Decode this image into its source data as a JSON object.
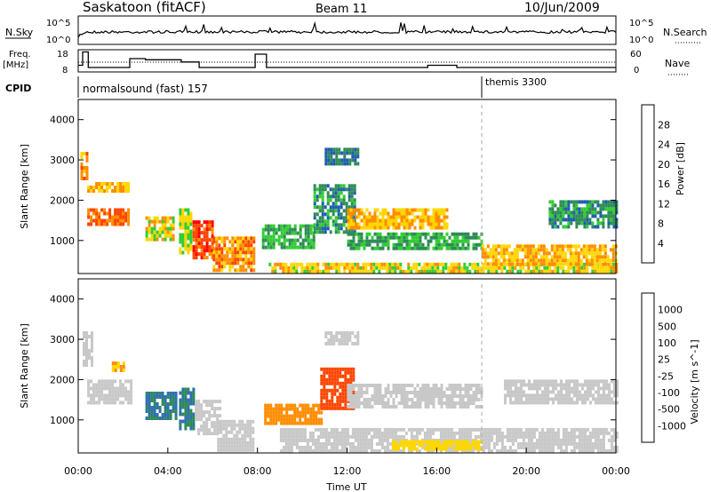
{
  "header": {
    "station": "Saskatoon (fitACF)",
    "beam": "Beam 11",
    "date": "10/Jun/2009"
  },
  "noise_panel": {
    "left_label": "N.Sky",
    "right_label": "N.Search",
    "left_ticks": [
      "10^5",
      "10^0"
    ],
    "right_ticks": [
      "10^5",
      "10^0"
    ]
  },
  "freq_panel": {
    "left_label_line1": "Freq.",
    "left_label_line2": "[MHz]",
    "right_label": "Nave",
    "left_ticks": [
      "18",
      "8"
    ],
    "right_ticks": [
      "60",
      "0"
    ]
  },
  "cpid_panel": {
    "label": "CPID",
    "program1": "normalsound (fast) 157",
    "program2": "themis 3300"
  },
  "power_panel": {
    "ylabel": "Slant Range [km]",
    "ticks": [
      "4000",
      "3000",
      "2000",
      "1000"
    ],
    "colorbar_label": "Power [dB]",
    "colorbar_ticks": [
      "28",
      "24",
      "20",
      "16",
      "12",
      "8",
      "4"
    ],
    "colors": [
      "#0000ff",
      "#1e5bb4",
      "#2e8b57",
      "#32cd32",
      "#ffd700",
      "#ff8c00",
      "#ff4500",
      "#ff0000"
    ]
  },
  "velocity_panel": {
    "ylabel": "Slant Range [km]",
    "ticks": [
      "4000",
      "3000",
      "2000",
      "1000"
    ],
    "colorbar_label": "Velocity [m s^-1]",
    "colorbar_ticks": [
      "1000",
      "500",
      "100",
      "25",
      "-25",
      "-100",
      "-500",
      "-1000"
    ],
    "colors": [
      "#1e3cb4",
      "#2f6fb0",
      "#2e8b57",
      "#5acd32",
      "#c8c8c8",
      "#ffd700",
      "#ff8c00",
      "#ff4500",
      "#ff0000"
    ]
  },
  "x_axis": {
    "ticks": [
      "00:00",
      "04:00",
      "08:00",
      "12:00",
      "16:00",
      "20:00",
      "00:00"
    ],
    "label": "Time UT"
  },
  "chart_data": {
    "type": "heatmap",
    "title": "Saskatoon (fitACF)",
    "subtitle": "Beam 11",
    "date": "10/Jun/2009",
    "x_range_hours": [
      0,
      24
    ],
    "y_range_km": [
      180,
      4500
    ],
    "cpid_change_hour": 18,
    "freq_steps": [
      {
        "t": 0,
        "f": 11
      },
      {
        "t": 0.2,
        "f": 17
      },
      {
        "t": 0.45,
        "f": 10
      },
      {
        "t": 2.3,
        "f": 14
      },
      {
        "t": 3.0,
        "f": 13.5
      },
      {
        "t": 4.6,
        "f": 12.5
      },
      {
        "t": 5.4,
        "f": 10
      },
      {
        "t": 7.9,
        "f": 16
      },
      {
        "t": 8.4,
        "f": 10
      },
      {
        "t": 15.6,
        "f": 11
      },
      {
        "t": 16.9,
        "f": 10
      },
      {
        "t": 24,
        "f": 10
      }
    ],
    "power_regions": [
      {
        "t0": 0.4,
        "t1": 2.2,
        "r0": 1400,
        "r1": 1800,
        "db": 24
      },
      {
        "t0": 0.4,
        "t1": 2.2,
        "r0": 2200,
        "r1": 2450,
        "db": 20
      },
      {
        "t0": 0.1,
        "t1": 0.4,
        "r0": 2500,
        "r1": 3200,
        "db": 22
      },
      {
        "t0": 3.0,
        "t1": 4.3,
        "r0": 1000,
        "r1": 1600,
        "db": 18
      },
      {
        "t0": 4.5,
        "t1": 5.0,
        "r0": 700,
        "r1": 1800,
        "db": 16
      },
      {
        "t0": 5.1,
        "t1": 6.0,
        "r0": 600,
        "r1": 1500,
        "db": 26
      },
      {
        "t0": 6.0,
        "t1": 7.9,
        "r0": 300,
        "r1": 1100,
        "db": 22
      },
      {
        "t0": 8.2,
        "t1": 10.5,
        "r0": 800,
        "r1": 1400,
        "db": 12
      },
      {
        "t0": 10.5,
        "t1": 12.3,
        "r0": 1200,
        "r1": 2400,
        "db": 10
      },
      {
        "t0": 11.0,
        "t1": 12.5,
        "r0": 2900,
        "r1": 3300,
        "db": 8
      },
      {
        "t0": 12.0,
        "t1": 16.5,
        "r0": 1300,
        "r1": 1800,
        "db": 20
      },
      {
        "t0": 12.0,
        "t1": 18.0,
        "r0": 800,
        "r1": 1200,
        "db": 12
      },
      {
        "t0": 8.5,
        "t1": 24.0,
        "r0": 200,
        "r1": 450,
        "db": 18
      },
      {
        "t0": 18.0,
        "t1": 24.0,
        "r0": 400,
        "r1": 900,
        "db": 20
      },
      {
        "t0": 21.0,
        "t1": 24.0,
        "r0": 1300,
        "r1": 2000,
        "db": 10
      }
    ],
    "velocity_regions": [
      {
        "t0": 0.2,
        "t1": 0.6,
        "r0": 2400,
        "r1": 3200,
        "v": 0
      },
      {
        "t0": 0.4,
        "t1": 2.4,
        "r0": 1400,
        "r1": 2000,
        "v": 0
      },
      {
        "t0": 1.5,
        "t1": 2.0,
        "r0": 2200,
        "r1": 2450,
        "v": -100
      },
      {
        "t0": 3.0,
        "t1": 4.4,
        "r0": 1000,
        "r1": 1700,
        "v": 100
      },
      {
        "t0": 4.5,
        "t1": 5.2,
        "r0": 800,
        "r1": 1800,
        "v": 100
      },
      {
        "t0": 5.2,
        "t1": 6.3,
        "r0": 700,
        "r1": 1500,
        "v": 0
      },
      {
        "t0": 6.2,
        "t1": 7.8,
        "r0": 250,
        "r1": 1000,
        "v": 0
      },
      {
        "t0": 8.3,
        "t1": 10.8,
        "r0": 900,
        "r1": 1400,
        "v": -300
      },
      {
        "t0": 10.8,
        "t1": 12.3,
        "r0": 1300,
        "r1": 2300,
        "v": -700
      },
      {
        "t0": 12.0,
        "t1": 18.0,
        "r0": 1300,
        "r1": 1900,
        "v": 0
      },
      {
        "t0": 11.0,
        "t1": 12.5,
        "r0": 2900,
        "r1": 3200,
        "v": 0
      },
      {
        "t0": 9.0,
        "t1": 24.0,
        "r0": 250,
        "r1": 800,
        "v": 0
      },
      {
        "t0": 14.0,
        "t1": 18.0,
        "r0": 300,
        "r1": 500,
        "v": -50
      },
      {
        "t0": 19.0,
        "t1": 24.0,
        "r0": 1400,
        "r1": 2000,
        "v": 0
      }
    ]
  }
}
